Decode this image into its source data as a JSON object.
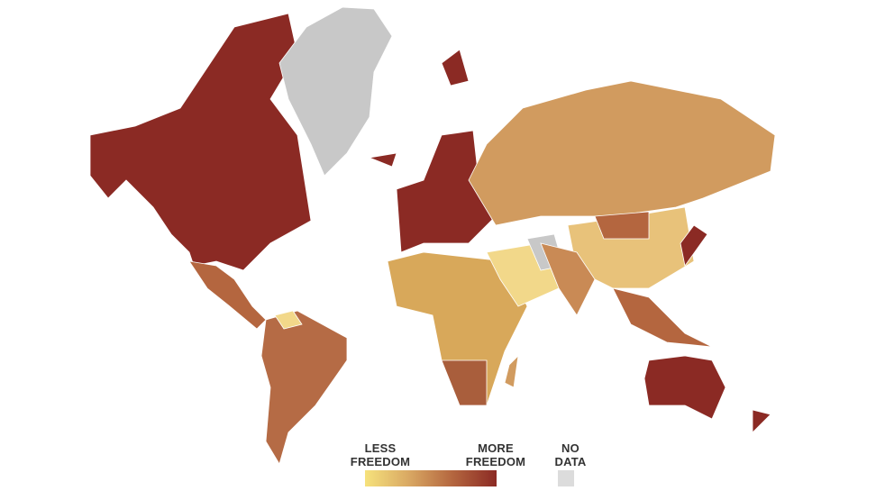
{
  "legend": {
    "low_label": "LESS FREEDOM",
    "high_label": "MORE FREEDOM",
    "no_data_label": "NO DATA"
  }
}
